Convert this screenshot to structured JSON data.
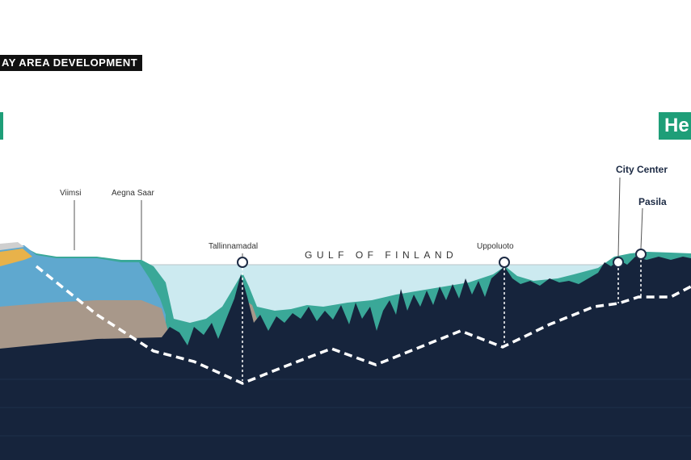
{
  "header": {
    "title": "AY AREA DEVELOPMENT"
  },
  "city_badge": {
    "label": "He"
  },
  "water_body": {
    "label": "GULF OF FINLAND"
  },
  "places": {
    "viimsi": "Viimsi",
    "aegna_saar": "Aegna Saar",
    "tallinnamadal": "Tallinnamadal",
    "uppoluoto": "Uppoluoto",
    "city_center": "City Center",
    "pasila": "Pasila"
  },
  "colors": {
    "seabed": "#16243c",
    "water": "#cceaf0",
    "sediment": "#3aa898",
    "rock_blue": "#5fa8cf",
    "rock_tan": "#a8988a",
    "accent_green": "#1e9e78",
    "tunnel_line": "#ffffff"
  }
}
